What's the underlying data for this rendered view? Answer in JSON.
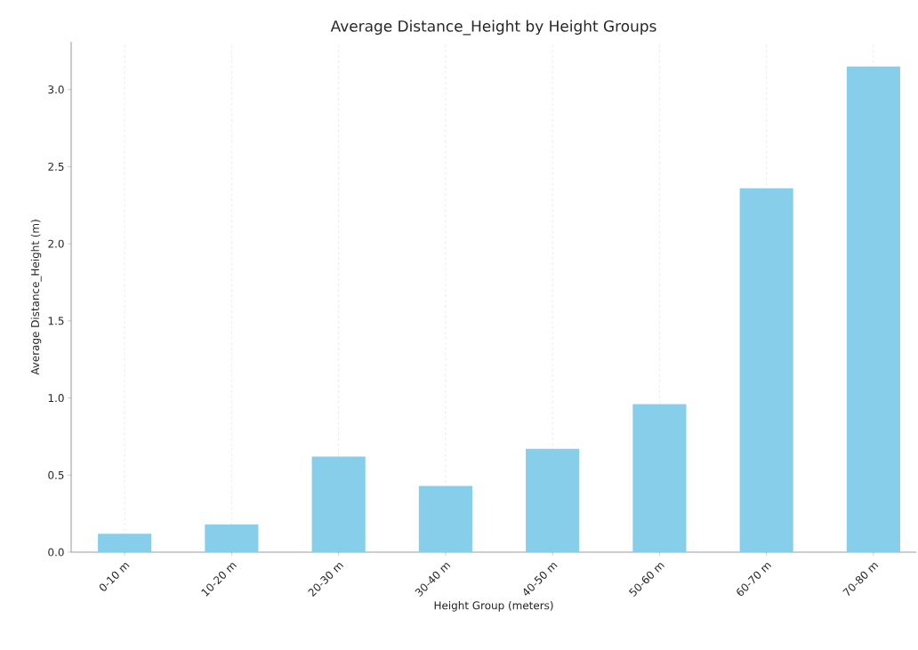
{
  "chart_data": {
    "type": "bar",
    "title": "Average Distance_Height by Height Groups",
    "xlabel": "Height Group (meters)",
    "ylabel": "Average Distance_Height (m)",
    "categories": [
      "0-10 m",
      "10-20 m",
      "20-30 m",
      "30-40 m",
      "40-50 m",
      "50-60 m",
      "60-70 m",
      "70-80 m"
    ],
    "values": [
      0.12,
      0.18,
      0.62,
      0.43,
      0.67,
      0.96,
      2.36,
      3.15
    ],
    "color": "#87ceeb",
    "ylim": [
      0,
      3.31
    ],
    "yticks": [
      {
        "value": 0,
        "label": "0.0"
      },
      {
        "value": 0.5,
        "label": "0.5"
      },
      {
        "value": 1,
        "label": "1.0"
      },
      {
        "value": 1.5,
        "label": "1.5"
      },
      {
        "value": 2,
        "label": "2.0"
      },
      {
        "value": 2.5,
        "label": "2.5"
      },
      {
        "value": 3,
        "label": "3.0"
      }
    ],
    "grid": "x"
  }
}
